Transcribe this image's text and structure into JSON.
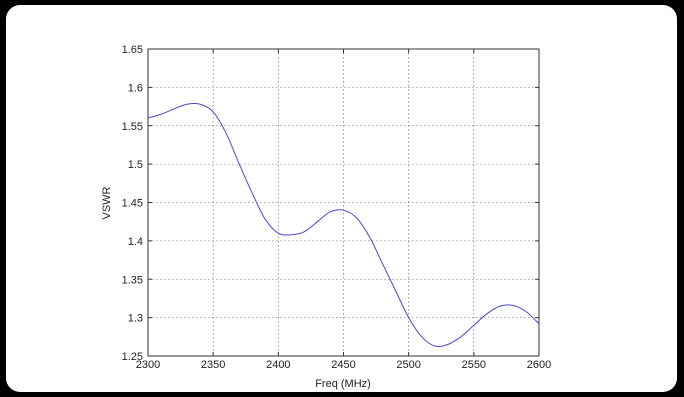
{
  "chart_data": {
    "type": "line",
    "xlabel": "Freq (MHz)",
    "ylabel": "VSWR",
    "xlim": [
      2300,
      2600
    ],
    "ylim": [
      1.25,
      1.65
    ],
    "xticks": [
      2300,
      2350,
      2400,
      2450,
      2500,
      2550,
      2600
    ],
    "xtick_labels": [
      "2300",
      "2350",
      "2400",
      "2450",
      "2500",
      "2550",
      "2600"
    ],
    "yticks": [
      1.25,
      1.3,
      1.35,
      1.4,
      1.45,
      1.5,
      1.55,
      1.6,
      1.65
    ],
    "ytick_labels": [
      "1.25",
      "1.3",
      "1.35",
      "1.4",
      "1.45",
      "1.5",
      "1.55",
      "1.6",
      "1.65"
    ],
    "grid": true,
    "line_color": "#4a4acc",
    "series": [
      {
        "x": [
          2300,
          2310,
          2320,
          2330,
          2340,
          2350,
          2360,
          2370,
          2380,
          2390,
          2400,
          2410,
          2420,
          2430,
          2440,
          2450,
          2460,
          2470,
          2480,
          2490,
          2500,
          2510,
          2520,
          2530,
          2540,
          2550,
          2560,
          2570,
          2580,
          2590,
          2600
        ],
        "values": [
          1.56,
          1.565,
          1.572,
          1.578,
          1.578,
          1.568,
          1.54,
          1.5,
          1.462,
          1.428,
          1.41,
          1.408,
          1.412,
          1.425,
          1.438,
          1.44,
          1.43,
          1.405,
          1.37,
          1.335,
          1.3,
          1.275,
          1.263,
          1.265,
          1.275,
          1.29,
          1.305,
          1.315,
          1.316,
          1.308,
          1.292
        ]
      }
    ]
  }
}
